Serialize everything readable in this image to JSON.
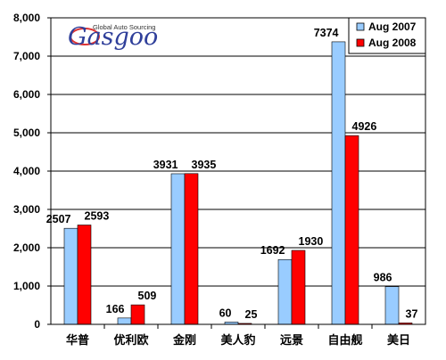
{
  "logo": {
    "tagline": "Global Auto Sourcing",
    "brand": "Gasgoo",
    "brand_color": "#2f3f9a",
    "accent_color": "#d33"
  },
  "chart_data": {
    "type": "bar",
    "title": "",
    "xlabel": "",
    "ylabel": "",
    "ylim": [
      0,
      8000
    ],
    "yticks": [
      0,
      1000,
      2000,
      3000,
      4000,
      5000,
      6000,
      7000,
      8000
    ],
    "ytick_labels": [
      "0",
      "1,000",
      "2,000",
      "3,000",
      "4,000",
      "5,000",
      "6,000",
      "7,000",
      "8,000"
    ],
    "grid": true,
    "legend_position": "top-right",
    "categories": [
      "华普",
      "优利欧",
      "金刚",
      "美人豹",
      "远景",
      "自由舰",
      "美日"
    ],
    "series": [
      {
        "name": "Aug 2007",
        "color": "#99ccff",
        "values": [
          2507,
          166,
          3931,
          60,
          1692,
          7374,
          986
        ]
      },
      {
        "name": "Aug 2008",
        "color": "#ff0000",
        "values": [
          2593,
          509,
          3935,
          25,
          1930,
          4926,
          37
        ]
      }
    ]
  }
}
